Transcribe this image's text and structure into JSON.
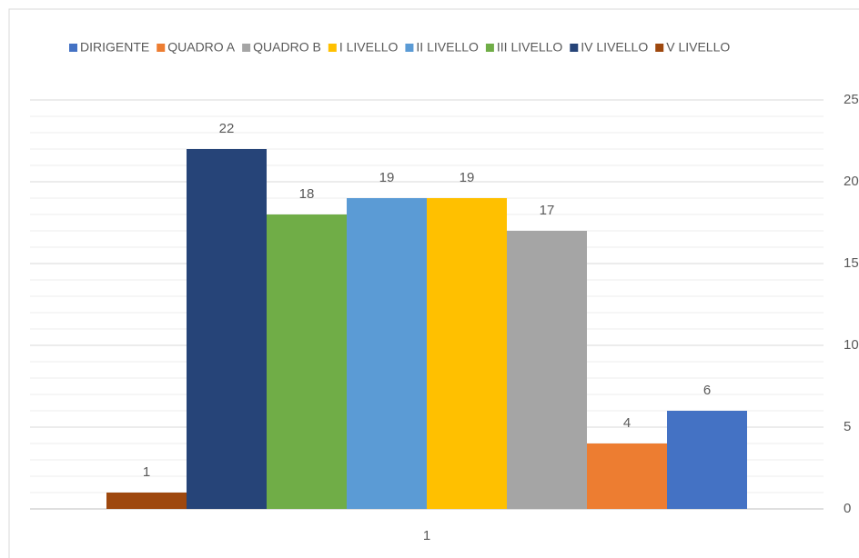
{
  "chart_data": {
    "type": "bar",
    "categories": [
      "1"
    ],
    "series": [
      {
        "name": "DIRIGENTE",
        "color": "#4472c4",
        "values": [
          6
        ]
      },
      {
        "name": "QUADRO A",
        "color": "#ed7d31",
        "values": [
          4
        ]
      },
      {
        "name": "QUADRO B",
        "color": "#a5a5a5",
        "values": [
          17
        ]
      },
      {
        "name": "I LIVELLO",
        "color": "#ffc000",
        "values": [
          19
        ]
      },
      {
        "name": "II LIVELLO",
        "color": "#5b9bd5",
        "values": [
          19
        ]
      },
      {
        "name": "III LIVELLO",
        "color": "#70ad47",
        "values": [
          18
        ]
      },
      {
        "name": "IV LIVELLO",
        "color": "#264478",
        "values": [
          22
        ]
      },
      {
        "name": "V LIVELLO",
        "color": "#9e480e",
        "values": [
          1
        ]
      }
    ],
    "ylim": [
      0,
      25
    ],
    "yticks": [
      0,
      5,
      10,
      15,
      20,
      25
    ],
    "y_axis_side": "right",
    "grid": true,
    "minor_grid": true,
    "legend": "top",
    "data_labels": true
  }
}
